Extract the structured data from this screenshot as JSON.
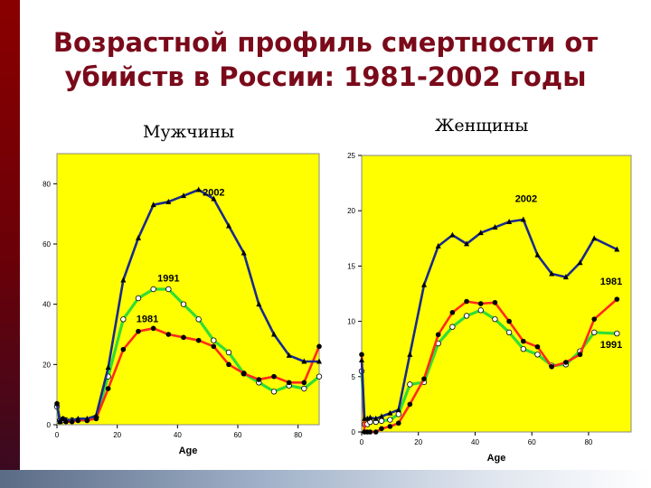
{
  "slide": {
    "title_line1": "Возрастной профиль смертности от",
    "title_line2": "убийств в России: 1981-2002 годы"
  },
  "colors": {
    "plot_background": "#ffff00",
    "series_2002": "#1a2a8c",
    "series_1991": "#33dd33",
    "series_1981": "#ff2a1a",
    "title": "#7a0a1a"
  },
  "chart_data": [
    {
      "type": "line",
      "panel_label": "Мужчины",
      "xlabel": "Age",
      "ylabel": "",
      "xlim": [
        0,
        87
      ],
      "ylim": [
        0,
        90
      ],
      "xticks": [
        0,
        20,
        40,
        60,
        80
      ],
      "yticks": [
        0,
        20,
        40,
        60,
        80
      ],
      "series": [
        {
          "name": "2002",
          "color": "#1a2a8c",
          "marker": "triangle",
          "x": [
            0,
            1,
            2,
            3,
            5,
            7,
            10,
            13,
            17,
            22,
            27,
            32,
            37,
            42,
            47,
            52,
            57,
            62,
            67,
            72,
            77,
            82,
            87
          ],
          "y": [
            7,
            1,
            2,
            1.5,
            1.5,
            2,
            2,
            3,
            19,
            48,
            62,
            73,
            74,
            76,
            78,
            75,
            66,
            57,
            40,
            30,
            23,
            21,
            21
          ]
        },
        {
          "name": "1991",
          "color": "#33dd33",
          "marker": "circle-open",
          "x": [
            0,
            1,
            2,
            3,
            5,
            7,
            10,
            13,
            17,
            22,
            27,
            32,
            37,
            42,
            47,
            52,
            57,
            62,
            67,
            72,
            77,
            82,
            87
          ],
          "y": [
            6,
            1.5,
            1.5,
            1.5,
            1.5,
            1.5,
            1.5,
            2.5,
            16,
            35,
            42,
            45,
            45,
            40,
            35,
            28,
            24,
            17,
            14,
            11,
            13,
            12,
            16
          ]
        },
        {
          "name": "1981",
          "color": "#ff2a1a",
          "marker": "circle-filled",
          "x": [
            0,
            1,
            2,
            3,
            5,
            7,
            10,
            13,
            17,
            22,
            27,
            32,
            37,
            42,
            47,
            52,
            57,
            62,
            67,
            72,
            77,
            82,
            87
          ],
          "y": [
            7,
            1,
            2,
            1,
            1,
            1.5,
            1.5,
            2,
            12,
            25,
            31,
            32,
            30,
            29,
            28,
            26,
            20,
            17,
            15,
            16,
            14,
            14,
            26
          ]
        }
      ],
      "annotations": [
        {
          "text": "2002",
          "x": 52,
          "y": 76
        },
        {
          "text": "1991",
          "x": 37,
          "y": 47.5
        },
        {
          "text": "1981",
          "x": 30,
          "y": 34
        }
      ]
    },
    {
      "type": "line",
      "panel_label": "Женщины",
      "xlabel": "Age",
      "ylabel": "",
      "xlim": [
        0,
        95
      ],
      "ylim": [
        0,
        25
      ],
      "xticks": [
        0,
        20,
        40,
        60,
        80
      ],
      "yticks": [
        0,
        5,
        10,
        15,
        20,
        25
      ],
      "series": [
        {
          "name": "2002",
          "color": "#1a2a8c",
          "marker": "triangle",
          "x": [
            0,
            1,
            2,
            3,
            5,
            7,
            10,
            13,
            17,
            22,
            27,
            32,
            37,
            42,
            47,
            52,
            57,
            62,
            67,
            72,
            77,
            82,
            90
          ],
          "y": [
            6.5,
            1.2,
            1.2,
            1.3,
            1.2,
            1.4,
            1.7,
            2.0,
            7.0,
            13.3,
            16.8,
            17.8,
            17.0,
            18.0,
            18.5,
            19.0,
            19.2,
            16.0,
            14.3,
            14.0,
            15.3,
            17.5,
            16.5
          ]
        },
        {
          "name": "1991",
          "color": "#33dd33",
          "marker": "circle-open",
          "x": [
            0,
            1,
            2,
            3,
            5,
            7,
            10,
            13,
            17,
            22,
            27,
            32,
            37,
            42,
            47,
            52,
            57,
            62,
            67,
            72,
            77,
            82,
            90
          ],
          "y": [
            5.5,
            0.7,
            0.7,
            0.9,
            0.9,
            1.0,
            1.1,
            1.6,
            4.3,
            4.5,
            8.0,
            9.5,
            10.5,
            11.0,
            10.2,
            9.0,
            7.5,
            7.0,
            6.0,
            6.1,
            7.3,
            9.0,
            8.9
          ]
        },
        {
          "name": "1981",
          "color": "#ff2a1a",
          "marker": "circle-filled",
          "x": [
            0,
            1,
            2,
            3,
            5,
            7,
            10,
            13,
            17,
            22,
            27,
            32,
            37,
            42,
            47,
            52,
            57,
            62,
            67,
            72,
            77,
            82,
            90
          ],
          "y": [
            7.0,
            0.0,
            0.0,
            0.0,
            0.0,
            0.3,
            0.5,
            0.8,
            2.5,
            4.8,
            8.8,
            10.8,
            11.8,
            11.6,
            11.7,
            10.0,
            8.2,
            7.7,
            5.9,
            6.3,
            7.0,
            10.2,
            12.0
          ]
        }
      ],
      "annotations": [
        {
          "text": "2002",
          "x": 58,
          "y": 20.8
        },
        {
          "text": "1981",
          "x": 88,
          "y": 13.3
        },
        {
          "text": "1991",
          "x": 88,
          "y": 7.6
        }
      ]
    }
  ]
}
